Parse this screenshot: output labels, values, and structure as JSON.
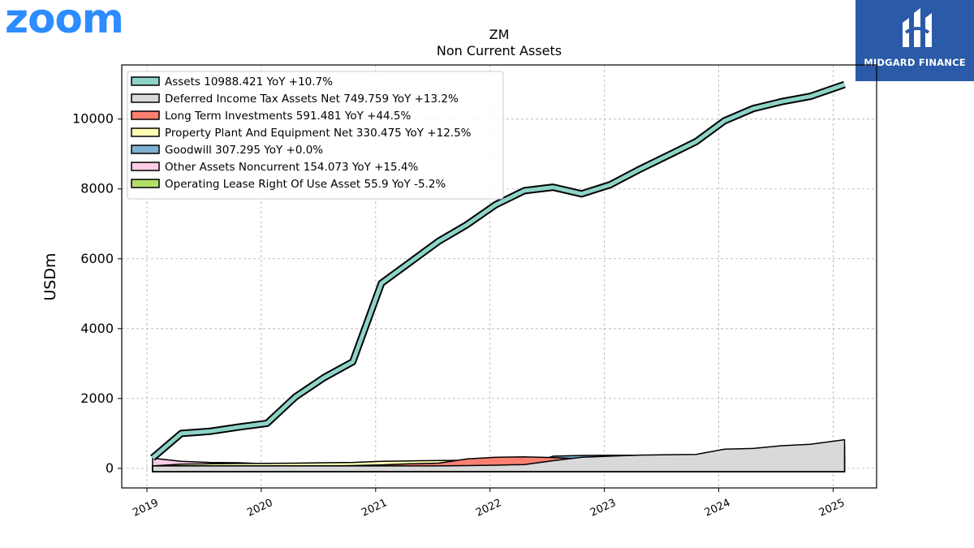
{
  "brand": {
    "left_logo": "zoom",
    "right_logo": "MIDGARD FINANCE"
  },
  "chart_data": {
    "type": "area",
    "title": "ZM",
    "subtitle": "Non Current  Assets",
    "xlabel": "",
    "ylabel": "USDm",
    "x_ticks": [
      "2019",
      "2020",
      "2021",
      "2022",
      "2023",
      "2024",
      "2025"
    ],
    "y_ticks": [
      "0",
      "2000",
      "4000",
      "6000",
      "8000",
      "10000"
    ],
    "xlim": [
      2018.78,
      2025.38
    ],
    "ylim": [
      -560,
      11550
    ],
    "grid": true,
    "legend_position": "top-left",
    "x": [
      2019.05,
      2019.3,
      2019.55,
      2019.8,
      2020.05,
      2020.3,
      2020.55,
      2020.8,
      2021.05,
      2021.3,
      2021.55,
      2021.8,
      2022.05,
      2022.3,
      2022.55,
      2022.8,
      2023.05,
      2023.3,
      2023.55,
      2023.8,
      2024.05,
      2024.3,
      2024.55,
      2024.8,
      2025.1
    ],
    "series": [
      {
        "name": "Assets",
        "label": "Assets  10988.421 YoY +10.7%",
        "color": "#8dd3c7",
        "values": [
          300,
          1000,
          1060,
          1180,
          1290,
          2050,
          2600,
          3050,
          5300,
          5900,
          6500,
          6980,
          7550,
          7950,
          8050,
          7860,
          8120,
          8550,
          8950,
          9350,
          9950,
          10300,
          10500,
          10650,
          10990
        ]
      },
      {
        "name": "Deferred Income Tax Assets Net",
        "label": "Deferred Income Tax Assets Net  749.759 YoY +13.2%",
        "color": "#d9d9d9",
        "values": [
          0,
          0,
          0,
          0,
          0,
          0,
          0,
          0,
          0,
          0,
          0,
          10,
          20,
          40,
          150,
          250,
          280,
          310,
          320,
          330,
          480,
          500,
          580,
          620,
          750
        ]
      },
      {
        "name": "Long Term Investments",
        "label": "Long Term Investments  591.481 YoY +44.5%",
        "color": "#fb8072",
        "values": [
          0,
          0,
          0,
          0,
          0,
          0,
          0,
          10,
          30,
          60,
          80,
          200,
          250,
          260,
          240,
          200,
          190,
          230,
          130,
          160,
          170,
          190,
          200,
          220,
          590
        ]
      },
      {
        "name": "Property Plant And Equipment Net",
        "label": "Property Plant And Equipment Net  330.475 YoY +12.5%",
        "color": "#ffffb3",
        "values": [
          0,
          50,
          60,
          70,
          75,
          80,
          90,
          100,
          130,
          145,
          155,
          160,
          170,
          180,
          190,
          200,
          220,
          240,
          260,
          275,
          285,
          295,
          305,
          315,
          330
        ]
      },
      {
        "name": "Goodwill",
        "label": "Goodwill  307.295 YoY +0.0%",
        "color": "#80b1d3",
        "values": [
          0,
          0,
          0,
          0,
          0,
          0,
          0,
          0,
          0,
          0,
          0,
          0,
          0,
          0,
          280,
          300,
          305,
          307,
          307,
          307,
          307,
          307,
          307,
          307,
          307
        ]
      },
      {
        "name": "Other Assets Noncurrent",
        "label": "Other Assets Noncurrent  154.073 YoY +15.4%",
        "color": "#fccde5",
        "values": [
          220,
          130,
          100,
          90,
          60,
          50,
          40,
          40,
          50,
          60,
          70,
          80,
          90,
          100,
          110,
          120,
          130,
          135,
          140,
          140,
          140,
          143,
          145,
          148,
          154
        ]
      },
      {
        "name": "Operating Lease Right Of Use Asset",
        "label": "Operating Lease Right Of Use Asset  55.9 YoY -5.2%",
        "color": "#b3de69",
        "values": [
          null,
          0,
          20,
          25,
          30,
          30,
          30,
          30,
          30,
          30,
          30,
          30,
          30,
          30,
          50,
          60,
          60,
          60,
          60,
          60,
          60,
          59,
          58,
          57,
          56
        ]
      }
    ]
  }
}
